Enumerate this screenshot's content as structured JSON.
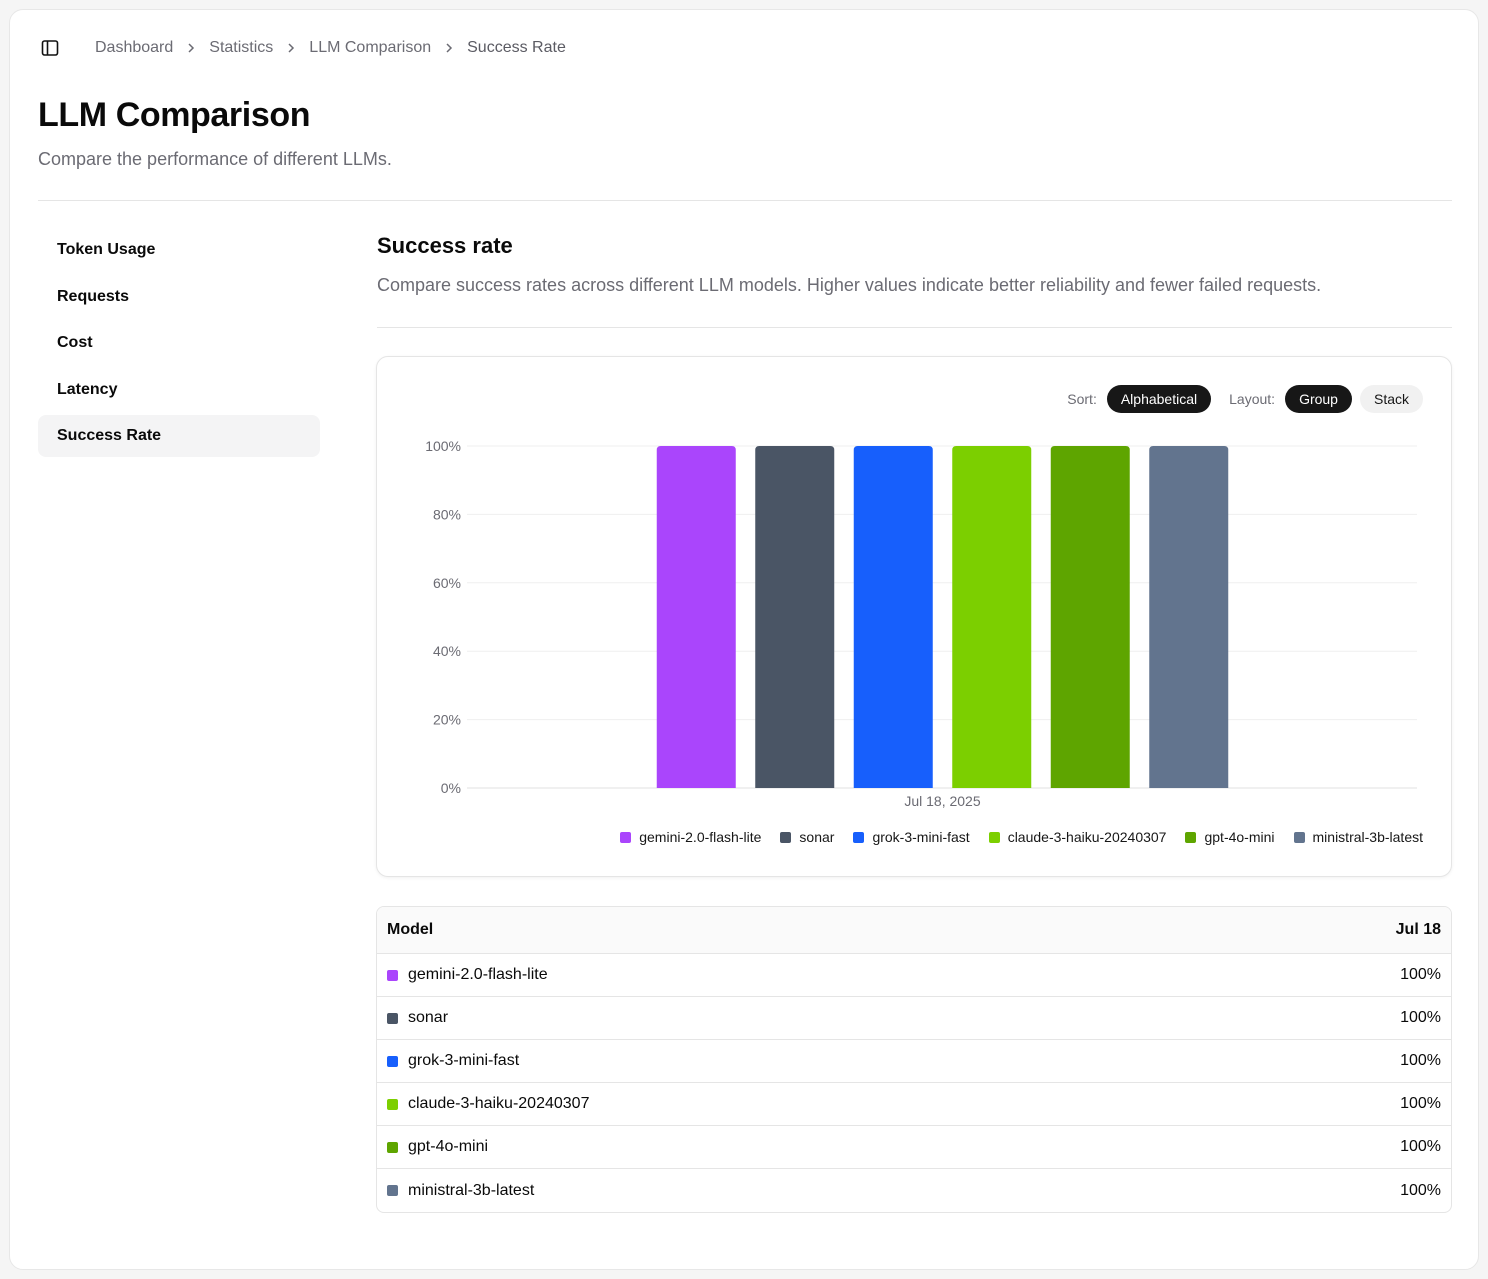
{
  "breadcrumb": {
    "items": [
      "Dashboard",
      "Statistics",
      "LLM Comparison"
    ],
    "current": "Success Rate"
  },
  "page": {
    "title": "LLM Comparison",
    "subtitle": "Compare the performance of different LLMs."
  },
  "sidenav": {
    "items": [
      "Token Usage",
      "Requests",
      "Cost",
      "Latency",
      "Success Rate"
    ],
    "active": "Success Rate"
  },
  "section": {
    "title": "Success rate",
    "description": "Compare success rates across different LLM models. Higher values indicate better reliability and fewer failed requests."
  },
  "controls": {
    "sort_label": "Sort:",
    "sort_value": "Alphabetical",
    "layout_label": "Layout:",
    "layout_options": [
      "Group",
      "Stack"
    ],
    "layout_active": "Group"
  },
  "chart_data": {
    "type": "bar",
    "categories": [
      "Jul 18, 2025"
    ],
    "series": [
      {
        "name": "gemini-2.0-flash-lite",
        "color": "#aa45fc",
        "values": [
          100
        ]
      },
      {
        "name": "sonar",
        "color": "#4a5565",
        "values": [
          100
        ]
      },
      {
        "name": "grok-3-mini-fast",
        "color": "#175ffc",
        "values": [
          100
        ]
      },
      {
        "name": "claude-3-haiku-20240307",
        "color": "#7ccf00",
        "values": [
          100
        ]
      },
      {
        "name": "gpt-4o-mini",
        "color": "#5ea500",
        "values": [
          100
        ]
      },
      {
        "name": "ministral-3b-latest",
        "color": "#62748e",
        "values": [
          100
        ]
      }
    ],
    "yticks": [
      "0%",
      "20%",
      "40%",
      "60%",
      "80%",
      "100%"
    ],
    "ylim": [
      0,
      100
    ],
    "grid": true,
    "legend": "bottom-right"
  },
  "table": {
    "headers": [
      "Model",
      "Jul 18"
    ],
    "rows": [
      {
        "model": "gemini-2.0-flash-lite",
        "color": "#aa45fc",
        "value": "100%"
      },
      {
        "model": "sonar",
        "color": "#4a5565",
        "value": "100%"
      },
      {
        "model": "grok-3-mini-fast",
        "color": "#175ffc",
        "value": "100%"
      },
      {
        "model": "claude-3-haiku-20240307",
        "color": "#7ccf00",
        "value": "100%"
      },
      {
        "model": "gpt-4o-mini",
        "color": "#5ea500",
        "value": "100%"
      },
      {
        "model": "ministral-3b-latest",
        "color": "#62748e",
        "value": "100%"
      }
    ]
  }
}
